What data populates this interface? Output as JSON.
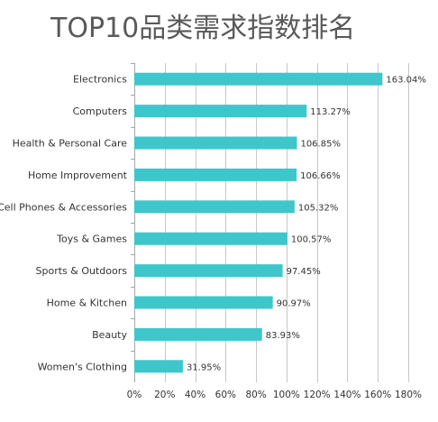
{
  "chart_data": {
    "type": "bar",
    "orientation": "horizontal",
    "title": "TOP10品类需求指数排名",
    "categories": [
      "Electronics",
      "Computers",
      "Health & Personal Care",
      "Home Improvement",
      "Cell Phones & Accessories",
      "Toys & Games",
      "Sports & Outdoors",
      "Home & Kitchen",
      "Beauty",
      "Women's Clothing"
    ],
    "values": [
      163.04,
      113.27,
      106.85,
      106.66,
      105.32,
      100.57,
      97.45,
      90.97,
      83.93,
      31.95
    ],
    "value_labels": [
      "163.04%",
      "113.27%",
      "106.85%",
      "106.66%",
      "105.32%",
      "100.57%",
      "97.45%",
      "90.97%",
      "83.93%",
      "31.95%"
    ],
    "xlim": [
      0,
      180
    ],
    "x_ticks": [
      0,
      20,
      40,
      60,
      80,
      100,
      120,
      140,
      160,
      180
    ],
    "x_tick_labels": [
      "0%",
      "20%",
      "40%",
      "60%",
      "80%",
      "100%",
      "120%",
      "140%",
      "160%",
      "180%"
    ],
    "xlabel": "",
    "ylabel": "",
    "grid": true,
    "legend": false,
    "bar_color": "#3EC6CB",
    "grid_color": "#C8C8C8"
  }
}
